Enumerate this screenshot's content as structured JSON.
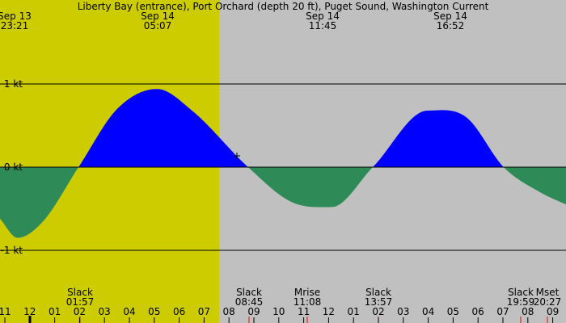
{
  "chart_data": {
    "type": "area",
    "title": "Liberty Bay (entrance), Port Orchard (depth 20 ft), Puget Sound, Washington Current",
    "x_unit": "hour",
    "x_range": [
      10.8,
      33.5
    ],
    "ylim": [
      -1.6,
      2.0
    ],
    "y_ticks": [
      {
        "value": 1,
        "label": "1 kt"
      },
      {
        "value": 0,
        "label": "0 kt"
      },
      {
        "value": -1,
        "label": "-1 kt"
      }
    ],
    "daylight": {
      "start": 6.9,
      "end": 19.6
    },
    "colors": {
      "flood": "#0000ff",
      "ebb": "#2e8b57",
      "day": "#cccc00",
      "night": "#c0c0c0",
      "grid": "#000000"
    },
    "series": [
      {
        "x": [
          10.8,
          11.5,
          12.5,
          13.95,
          15.5,
          17.1,
          18.5,
          20.75,
          22.5,
          24.1,
          25.75,
          27.95,
          29.5,
          31.0,
          32.45,
          33.5
        ],
        "y": [
          -0.62,
          -0.85,
          -0.66,
          0.0,
          0.7,
          0.94,
          0.68,
          0.0,
          -0.42,
          -0.48,
          0.0,
          0.68,
          0.6,
          0.0,
          -0.3,
          -0.45
        ]
      }
    ],
    "events_top": [
      {
        "date": "Sep 13",
        "time": "23:21",
        "hour": 23.35
      },
      {
        "date": "Sep 14",
        "time": "05:07",
        "hour": 29.12
      },
      {
        "date": "Sep 14",
        "time": "11:45",
        "hour": 35.75
      },
      {
        "date": "Sep 14",
        "time": "16:52",
        "hour": 40.87
      }
    ],
    "events_bottom": [
      {
        "name": "Slack",
        "time": "01:57"
      },
      {
        "name": "Slack",
        "time": "08:45"
      },
      {
        "name": "Mrise",
        "time": "11:08"
      },
      {
        "name": "Slack",
        "time": "13:57"
      },
      {
        "name": "Slack",
        "time": "19:59"
      },
      {
        "name": "Mset",
        "time": "20:27"
      }
    ],
    "hour_ticks": [
      "11",
      "12",
      "01",
      "02",
      "03",
      "04",
      "05",
      "06",
      "07",
      "08",
      "09",
      "10",
      "11",
      "12",
      "01",
      "02",
      "03",
      "04",
      "05",
      "06",
      "07",
      "08",
      "09"
    ]
  }
}
